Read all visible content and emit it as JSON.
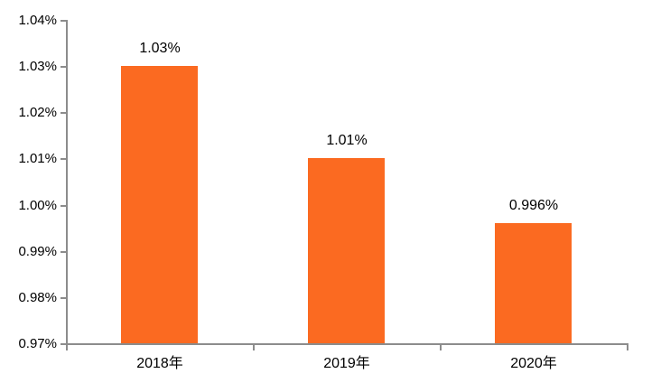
{
  "chart_data": {
    "type": "bar",
    "title": "",
    "xlabel": "",
    "ylabel": "",
    "categories": [
      "2018年",
      "2019年",
      "2020年"
    ],
    "values": [
      1.03,
      1.01,
      0.996
    ],
    "data_labels": [
      "1.03%",
      "1.01%",
      "0.996%"
    ],
    "y_ticks": [
      "1.04%",
      "1.03%",
      "1.02%",
      "1.01%",
      "1.00%",
      "0.99%",
      "0.98%",
      "0.97%"
    ],
    "y_tick_values": [
      1.04,
      1.03,
      1.02,
      1.01,
      1.0,
      0.99,
      0.98,
      0.97
    ],
    "ylim": [
      0.97,
      1.04
    ],
    "grid": false,
    "legend_position": "none",
    "colors": {
      "bar": "#FB6A21",
      "axis": "#8C8C8C",
      "text": "#000000",
      "background": "#FFFFFF"
    }
  }
}
